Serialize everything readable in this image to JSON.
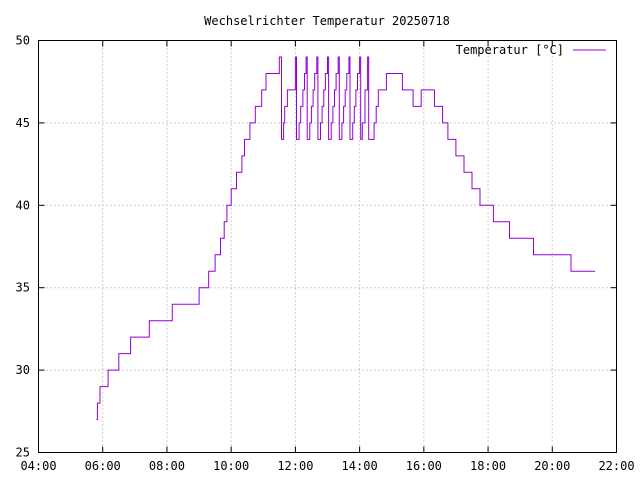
{
  "chart_data": {
    "type": "line",
    "title": "Wechselrichter Temperatur 20250718",
    "xlabel": "",
    "ylabel": "",
    "xlim": [
      "04:00",
      "22:00"
    ],
    "ylim": [
      25,
      50
    ],
    "x_ticks": [
      "04:00",
      "06:00",
      "08:00",
      "10:00",
      "12:00",
      "14:00",
      "16:00",
      "18:00",
      "20:00",
      "22:00"
    ],
    "y_ticks": [
      "25",
      "30",
      "35",
      "40",
      "45",
      "50"
    ],
    "grid": true,
    "legend_position": "top-right",
    "colors": {
      "series": "#9400d3",
      "grid": "#a0a0a0",
      "axis": "#000000"
    },
    "series": [
      {
        "name": "Temperatur [°C]",
        "step": true,
        "points": [
          [
            "05:48",
            27
          ],
          [
            "05:50",
            28
          ],
          [
            "05:55",
            29
          ],
          [
            "06:10",
            30
          ],
          [
            "06:30",
            31
          ],
          [
            "06:52",
            32
          ],
          [
            "07:27",
            33
          ],
          [
            "08:10",
            34
          ],
          [
            "09:00",
            35
          ],
          [
            "09:18",
            36
          ],
          [
            "09:30",
            37
          ],
          [
            "09:40",
            38
          ],
          [
            "09:47",
            39
          ],
          [
            "09:52",
            40
          ],
          [
            "10:00",
            41
          ],
          [
            "10:10",
            42
          ],
          [
            "10:20",
            43
          ],
          [
            "10:25",
            44
          ],
          [
            "10:35",
            45
          ],
          [
            "10:45",
            46
          ],
          [
            "10:57",
            47
          ],
          [
            "11:05",
            48
          ],
          [
            "11:30",
            49
          ],
          [
            "11:34",
            44
          ],
          [
            "11:38",
            45
          ],
          [
            "11:40",
            46
          ],
          [
            "11:45",
            47
          ],
          [
            "12:00",
            49
          ],
          [
            "12:02",
            44
          ],
          [
            "12:07",
            45
          ],
          [
            "12:10",
            46
          ],
          [
            "12:14",
            47
          ],
          [
            "12:17",
            48
          ],
          [
            "12:20",
            49
          ],
          [
            "12:22",
            44
          ],
          [
            "12:27",
            45
          ],
          [
            "12:30",
            46
          ],
          [
            "12:33",
            47
          ],
          [
            "12:36",
            48
          ],
          [
            "12:40",
            49
          ],
          [
            "12:42",
            44
          ],
          [
            "12:47",
            45
          ],
          [
            "12:50",
            46
          ],
          [
            "12:53",
            47
          ],
          [
            "12:56",
            48
          ],
          [
            "13:00",
            49
          ],
          [
            "13:02",
            44
          ],
          [
            "13:07",
            45
          ],
          [
            "13:10",
            46
          ],
          [
            "13:13",
            47
          ],
          [
            "13:16",
            48
          ],
          [
            "13:20",
            49
          ],
          [
            "13:22",
            44
          ],
          [
            "13:27",
            45
          ],
          [
            "13:30",
            46
          ],
          [
            "13:33",
            47
          ],
          [
            "13:36",
            48
          ],
          [
            "13:40",
            49
          ],
          [
            "13:42",
            44
          ],
          [
            "13:47",
            45
          ],
          [
            "13:50",
            46
          ],
          [
            "13:53",
            47
          ],
          [
            "13:56",
            48
          ],
          [
            "14:00",
            49
          ],
          [
            "14:02",
            44
          ],
          [
            "14:05",
            45
          ],
          [
            "14:10",
            47
          ],
          [
            "14:15",
            49
          ],
          [
            "14:17",
            44
          ],
          [
            "14:27",
            45
          ],
          [
            "14:31",
            46
          ],
          [
            "14:35",
            47
          ],
          [
            "14:50",
            48
          ],
          [
            "15:20",
            47
          ],
          [
            "15:40",
            46
          ],
          [
            "15:55",
            47
          ],
          [
            "16:20",
            46
          ],
          [
            "16:35",
            45
          ],
          [
            "16:45",
            44
          ],
          [
            "17:00",
            43
          ],
          [
            "17:15",
            42
          ],
          [
            "17:30",
            41
          ],
          [
            "17:45",
            40
          ],
          [
            "18:10",
            39
          ],
          [
            "18:40",
            38
          ],
          [
            "19:25",
            37
          ],
          [
            "20:35",
            36
          ],
          [
            "21:20",
            36
          ]
        ]
      }
    ]
  }
}
